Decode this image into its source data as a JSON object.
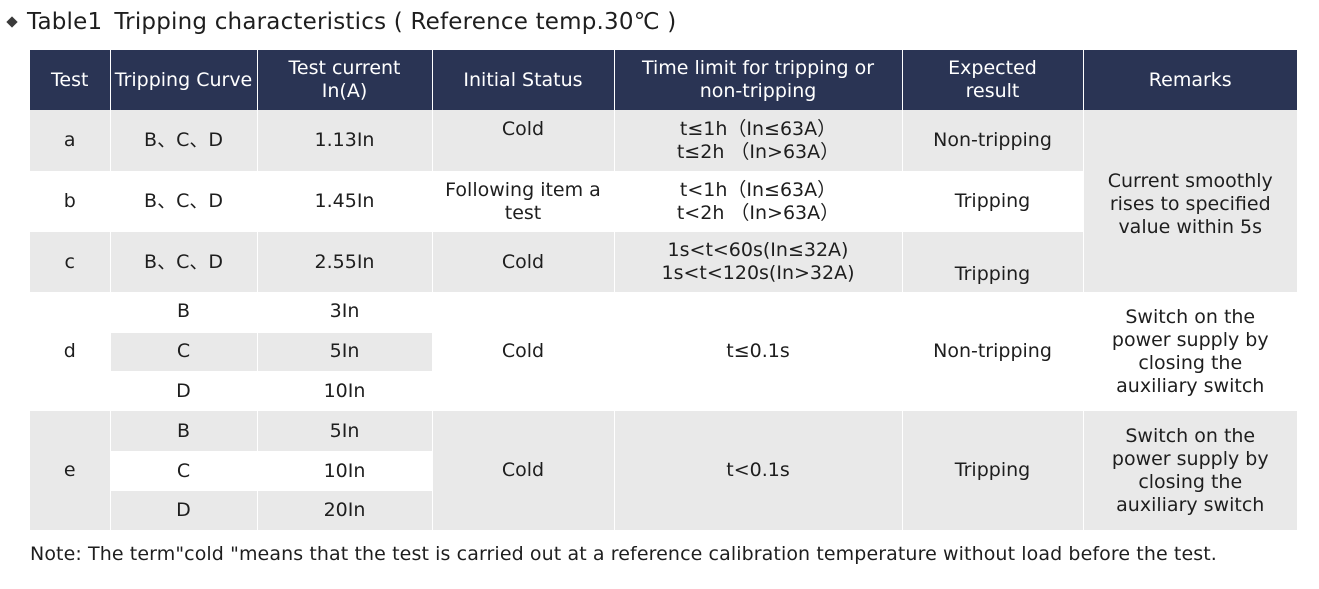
{
  "title": {
    "label": "Table1",
    "text": "Tripping characteristics ( Reference temp.30℃ )"
  },
  "headers": {
    "test": "Test",
    "curve": "Tripping Curve",
    "current_1": "Test current",
    "current_2": "In(A)",
    "initial": "Initial Status",
    "time_1": "Time limit for tripping or",
    "time_2": "non-tripping",
    "expected_1": "Expected",
    "expected_2": "result",
    "remarks": "Remarks"
  },
  "rows": {
    "a": {
      "test": "a",
      "curve": "B、C、D",
      "current": "1.13In",
      "initial": "Cold",
      "time_1": "t≤1h（In≤63A）",
      "time_2": "t≤2h （In>63A）",
      "result": "Non-tripping"
    },
    "b": {
      "test": "b",
      "curve": "B、C、D",
      "current": "1.45In",
      "initial_1": "Following item a",
      "initial_2": "test",
      "time_1": "t<1h（In≤63A）",
      "time_2": "t<2h （In>63A）",
      "result": "Tripping"
    },
    "c": {
      "test": "c",
      "curve": "B、C、D",
      "current": "2.55In",
      "initial": "Cold",
      "time_1": "1s<t<60s(In≤32A)",
      "time_2": "1s<t<120s(In>32A)",
      "result": "Tripping"
    },
    "d": {
      "test": "d",
      "curves": [
        "B",
        "C",
        "D"
      ],
      "currents": [
        "3In",
        "5In",
        "10In"
      ],
      "initial": "Cold",
      "time": "t≤0.1s",
      "result": "Non-tripping"
    },
    "e": {
      "test": "e",
      "curves": [
        "B",
        "C",
        "D"
      ],
      "currents": [
        "5In",
        "10In",
        "20In"
      ],
      "initial": "Cold",
      "time": "t<0.1s",
      "result": "Tripping"
    }
  },
  "remarks": {
    "abc_1": "Current smoothly",
    "abc_2": "rises to specified",
    "abc_3": "value within 5s",
    "switch_1": "Switch on the",
    "switch_2": "power supply by",
    "switch_3": "closing the",
    "switch_4": "auxiliary switch"
  },
  "note": "Note: The term\"cold \"means that the test is carried out at a reference calibration temperature without load before the test.",
  "colors": {
    "header_bg": "#2a3454",
    "header_text": "#ffffff",
    "row_gray": "#e9e9e9",
    "row_white": "#ffffff"
  }
}
